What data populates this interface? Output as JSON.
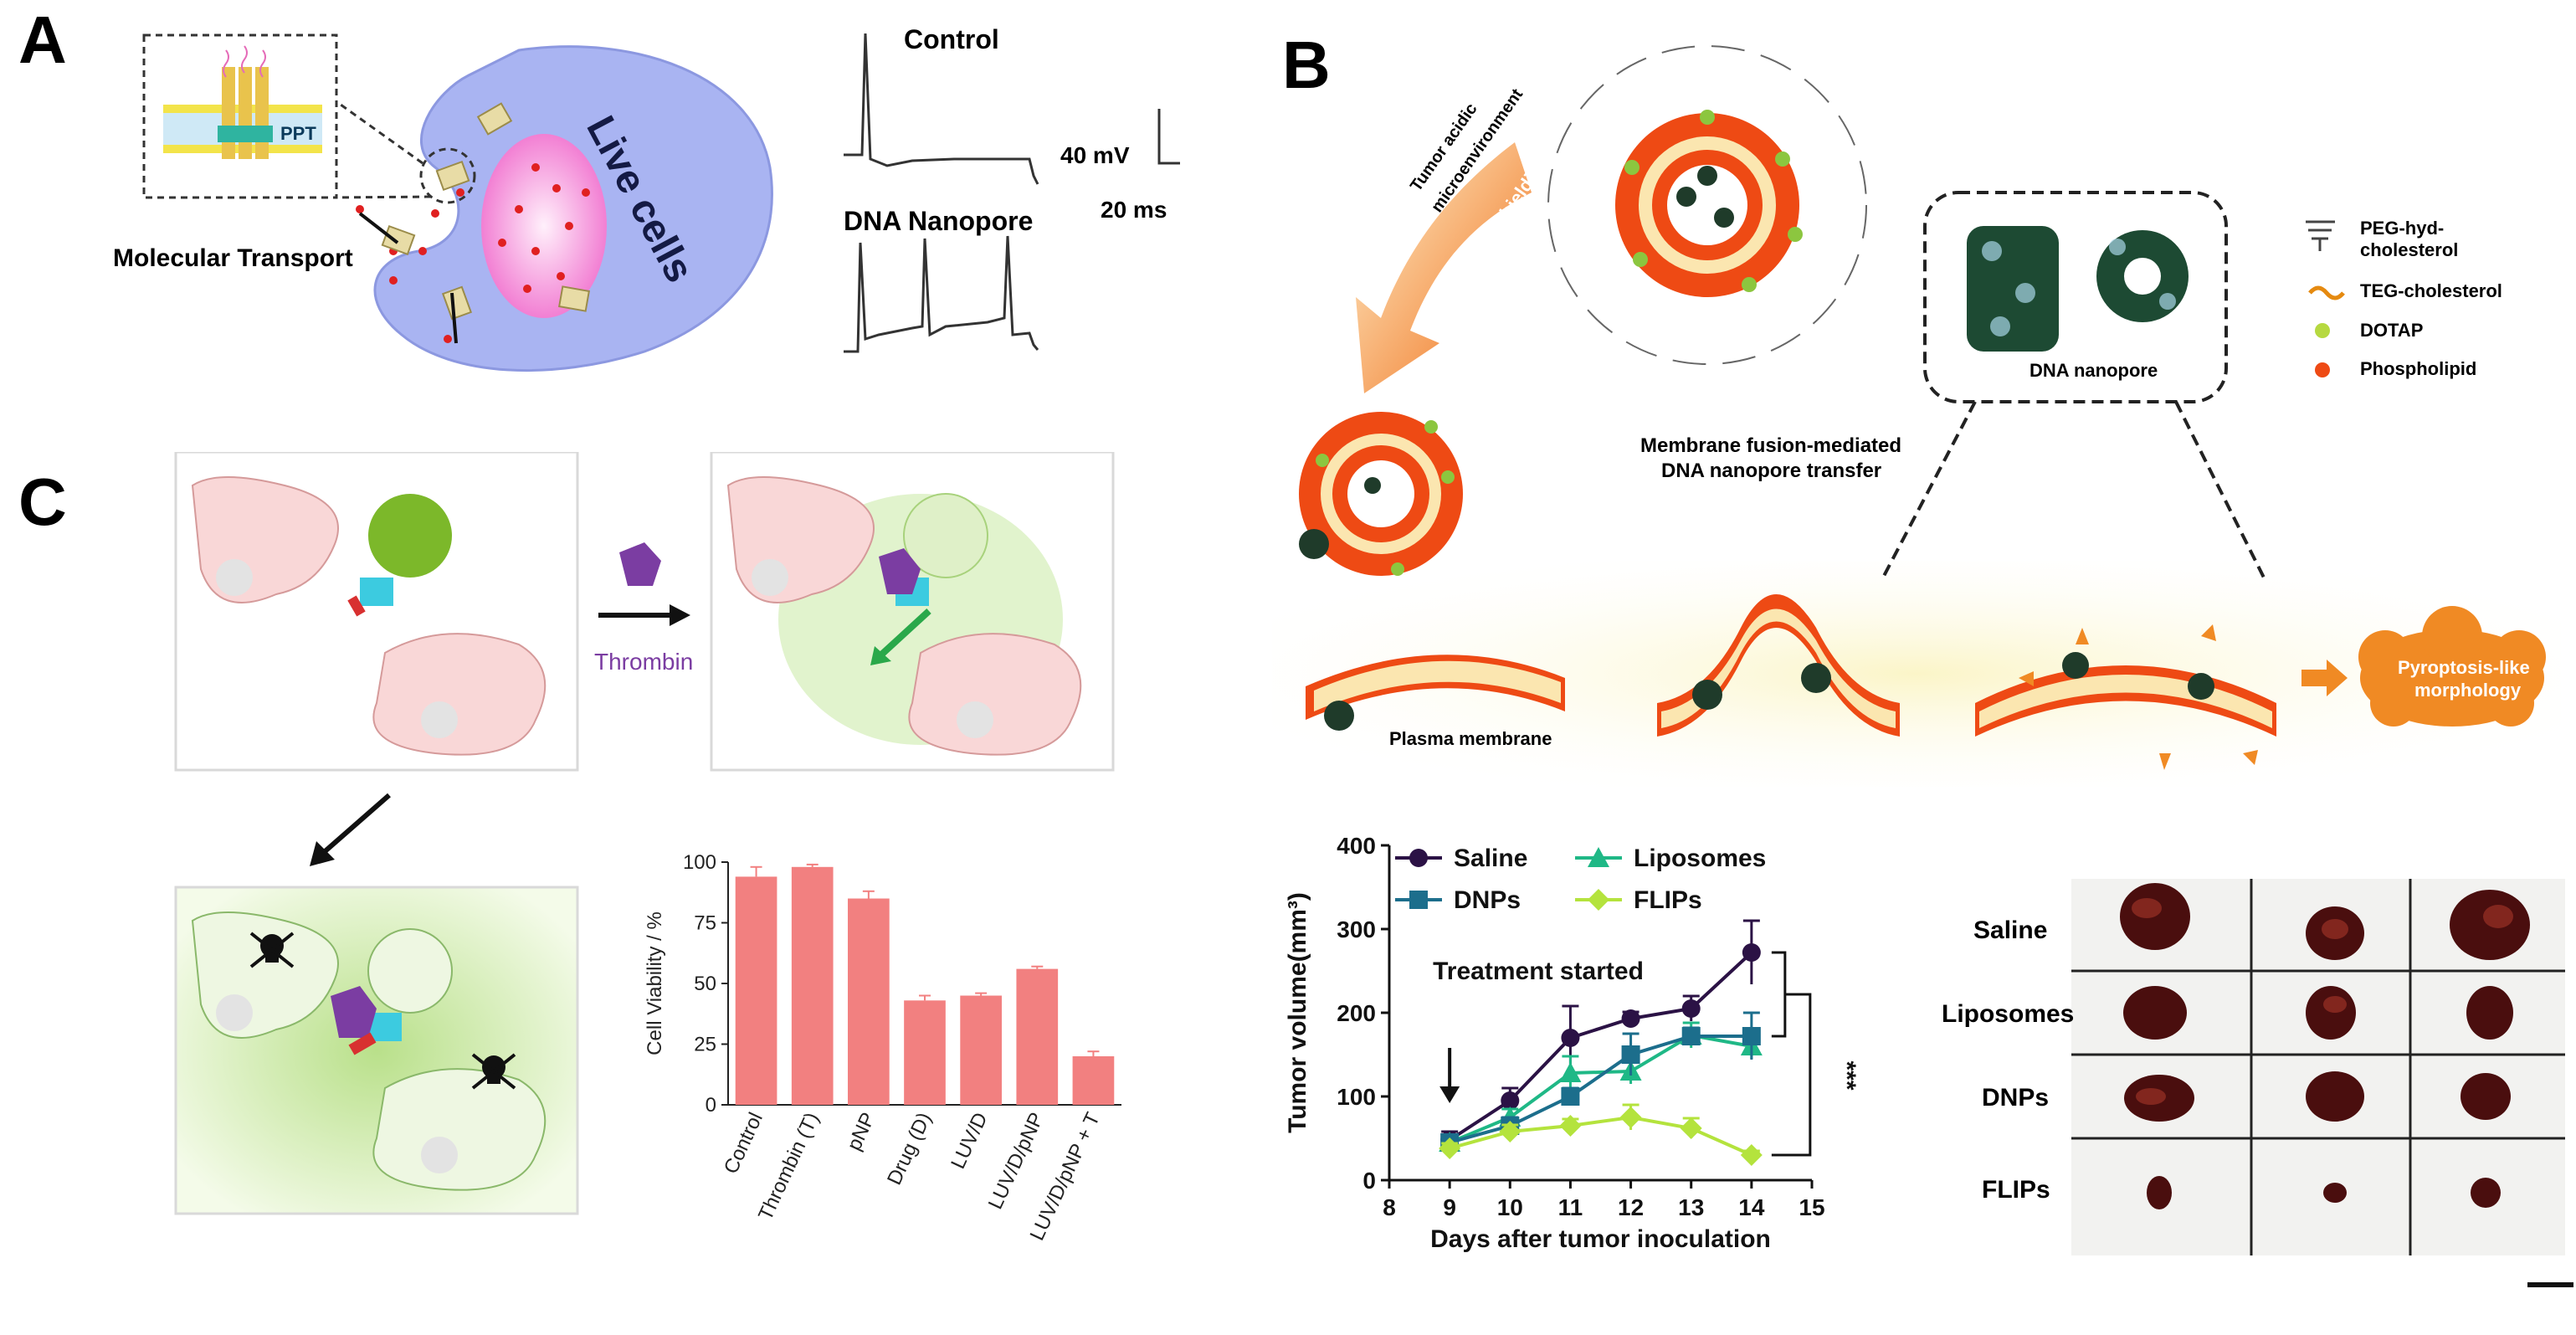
{
  "panels": {
    "a": "A",
    "b": "B",
    "c": "C"
  },
  "panel_a": {
    "membrane_label": "PPT",
    "live_cells": "Live cells",
    "molecular_transport": "Molecular Transport",
    "control_label": "Control",
    "dna_nanopore_label": "DNA Nanopore",
    "scale_mv": "40 mV",
    "scale_ms": "20 ms"
  },
  "panel_b": {
    "tumor_text_line1": "Tumor acidic",
    "tumor_text_line2": "microenvironment",
    "deshielding": "Deshielding",
    "fusion_line1": "Membrane fusion-mediated",
    "fusion_line2": "DNA nanopore transfer",
    "dna_nanopore": "DNA nanopore",
    "plasma_membrane": "Plasma membrane",
    "pyroptosis_line1": "Pyroptosis-like",
    "pyroptosis_line2": "morphology",
    "legend": [
      {
        "label": "PEG-hyd-",
        "label2": "cholesterol",
        "icon": "comb-icon"
      },
      {
        "label": "TEG-cholesterol",
        "icon": "chain-icon"
      },
      {
        "label": "DOTAP",
        "icon": "green-lipid-icon"
      },
      {
        "label": "Phospholipid",
        "icon": "red-lipid-icon"
      }
    ],
    "colors": {
      "lipid": "#ee4a14",
      "dotap": "#8cc63f",
      "membrane_glow": "#fbf5c8",
      "pyroptosis": "#f08a24"
    }
  },
  "panel_c": {
    "thrombin": "Thrombin",
    "colors": {
      "cell": "#f9d7d7",
      "bar": "#f28080",
      "glow": "#b9e08a"
    }
  },
  "photo": {
    "rows": [
      "Saline",
      "Liposomes",
      "DNPs",
      "FLIPs"
    ]
  },
  "chart_data": [
    {
      "type": "bar",
      "title": "",
      "categories": [
        "Control",
        "Thrombin (T)",
        "pNP",
        "Drug (D)",
        "LUV/D",
        "LUV/D/pNP",
        "LUV/D/pNP + T"
      ],
      "values": [
        94,
        98,
        85,
        43,
        45,
        56,
        20
      ],
      "errors": [
        4,
        1,
        3,
        2,
        1,
        1,
        2
      ],
      "xlabel": "",
      "ylabel": "Cell Viability / %",
      "ylim": [
        0,
        100
      ],
      "yticks": [
        0,
        25,
        50,
        75,
        100
      ]
    },
    {
      "type": "line",
      "title": "",
      "xlabel": "Days after tumor inoculation",
      "ylabel": "Tumor volume(mm³)",
      "xlim": [
        8,
        15
      ],
      "ylim": [
        0,
        400
      ],
      "xticks": [
        8,
        9,
        10,
        11,
        12,
        13,
        14,
        15
      ],
      "yticks": [
        0,
        100,
        200,
        300,
        400
      ],
      "annotation": "Treatment started",
      "significance": "***",
      "series": [
        {
          "name": "Saline",
          "color": "#2b1245",
          "marker": "circle",
          "x": [
            9,
            10,
            11,
            12,
            13,
            14
          ],
          "y": [
            48,
            95,
            170,
            193,
            205,
            272
          ],
          "err": [
            10,
            15,
            38,
            8,
            15,
            38
          ]
        },
        {
          "name": "Liposomes",
          "color": "#1fb886",
          "marker": "triangle",
          "x": [
            9,
            10,
            11,
            12,
            13,
            14
          ],
          "y": [
            45,
            75,
            128,
            130,
            173,
            160
          ],
          "err": [
            8,
            10,
            20,
            15,
            15,
            15
          ]
        },
        {
          "name": "DNPs",
          "color": "#1c6e8c",
          "marker": "square",
          "x": [
            9,
            10,
            11,
            12,
            13,
            14
          ],
          "y": [
            45,
            65,
            100,
            150,
            172,
            172
          ],
          "err": [
            8,
            10,
            10,
            25,
            10,
            28
          ]
        },
        {
          "name": "FLIPs",
          "color": "#b4e33d",
          "marker": "diamond",
          "x": [
            9,
            10,
            11,
            12,
            13,
            14
          ],
          "y": [
            38,
            58,
            65,
            75,
            62,
            30
          ],
          "err": [
            6,
            8,
            8,
            15,
            12,
            5
          ]
        }
      ]
    }
  ]
}
